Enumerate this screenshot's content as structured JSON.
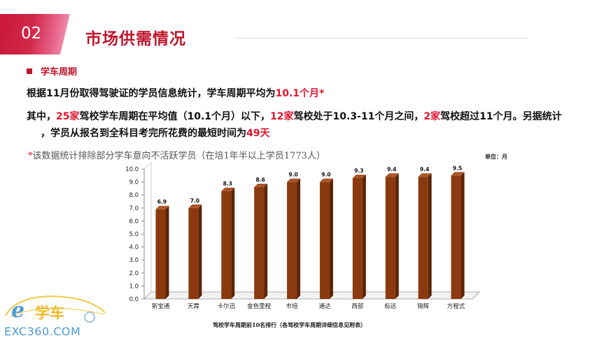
{
  "header": {
    "section_number": "02",
    "title": "市场供需情况"
  },
  "section": {
    "title": "学车周期"
  },
  "paragraphs": {
    "p1_a": "根据11月份取得驾驶证的学员信息统计，学车周期平均为",
    "p1_b": "10.1个月*",
    "p2_a": "其中，",
    "p2_b": "25家",
    "p2_c": "驾校学车周期在平均值（10.1个月）以下，",
    "p2_d": "12家",
    "p2_e": "驾校处于10.3-11个月之间，",
    "p2_f": "2家",
    "p2_g": "驾校超过11个月。另据统计",
    "p3_a": "，学员从报名到全科目考完所花费的最短时间为",
    "p3_b": "49天"
  },
  "note": {
    "star": "*",
    "text": "该数据统计排除部分学车意向不活跃学员（在培1年半以上学员1773人）"
  },
  "colors": {
    "accent_red": "#c0152c",
    "highlight_red": "#e0152f",
    "bar_front": "#8b3a10",
    "bar_side": "#5e2408",
    "bar_top": "#a9562a"
  },
  "chart_data": {
    "type": "bar",
    "categories": [
      "新宝通",
      "天霖",
      "卡尔迅",
      "金色里程",
      "市培",
      "通达",
      "西部",
      "标远",
      "锦辉",
      "方程式"
    ],
    "values": [
      6.9,
      7.0,
      8.3,
      8.6,
      9.0,
      9.0,
      9.3,
      9.4,
      9.4,
      9.5
    ],
    "value_labels": [
      "6.9",
      "7.0",
      "8.3",
      "8.6",
      "9.0",
      "9.0",
      "9.3",
      "9.4",
      "9.4",
      "9.5"
    ],
    "y_ticks": [
      "0.0",
      "1.0",
      "2.0",
      "3.0",
      "4.0",
      "5.0",
      "6.0",
      "7.0",
      "8.0",
      "9.0",
      "10.0"
    ],
    "ylim": [
      0,
      10
    ],
    "unit_label": "单位：月",
    "xlabel": "驾校学车周期前10名排行（各驾校学车周期详细信息见附表）",
    "ylabel": "",
    "grid": false,
    "style": "3d-column"
  },
  "logo": {
    "e": "e",
    "cn": "学车",
    "url": "EXC360.COM"
  }
}
